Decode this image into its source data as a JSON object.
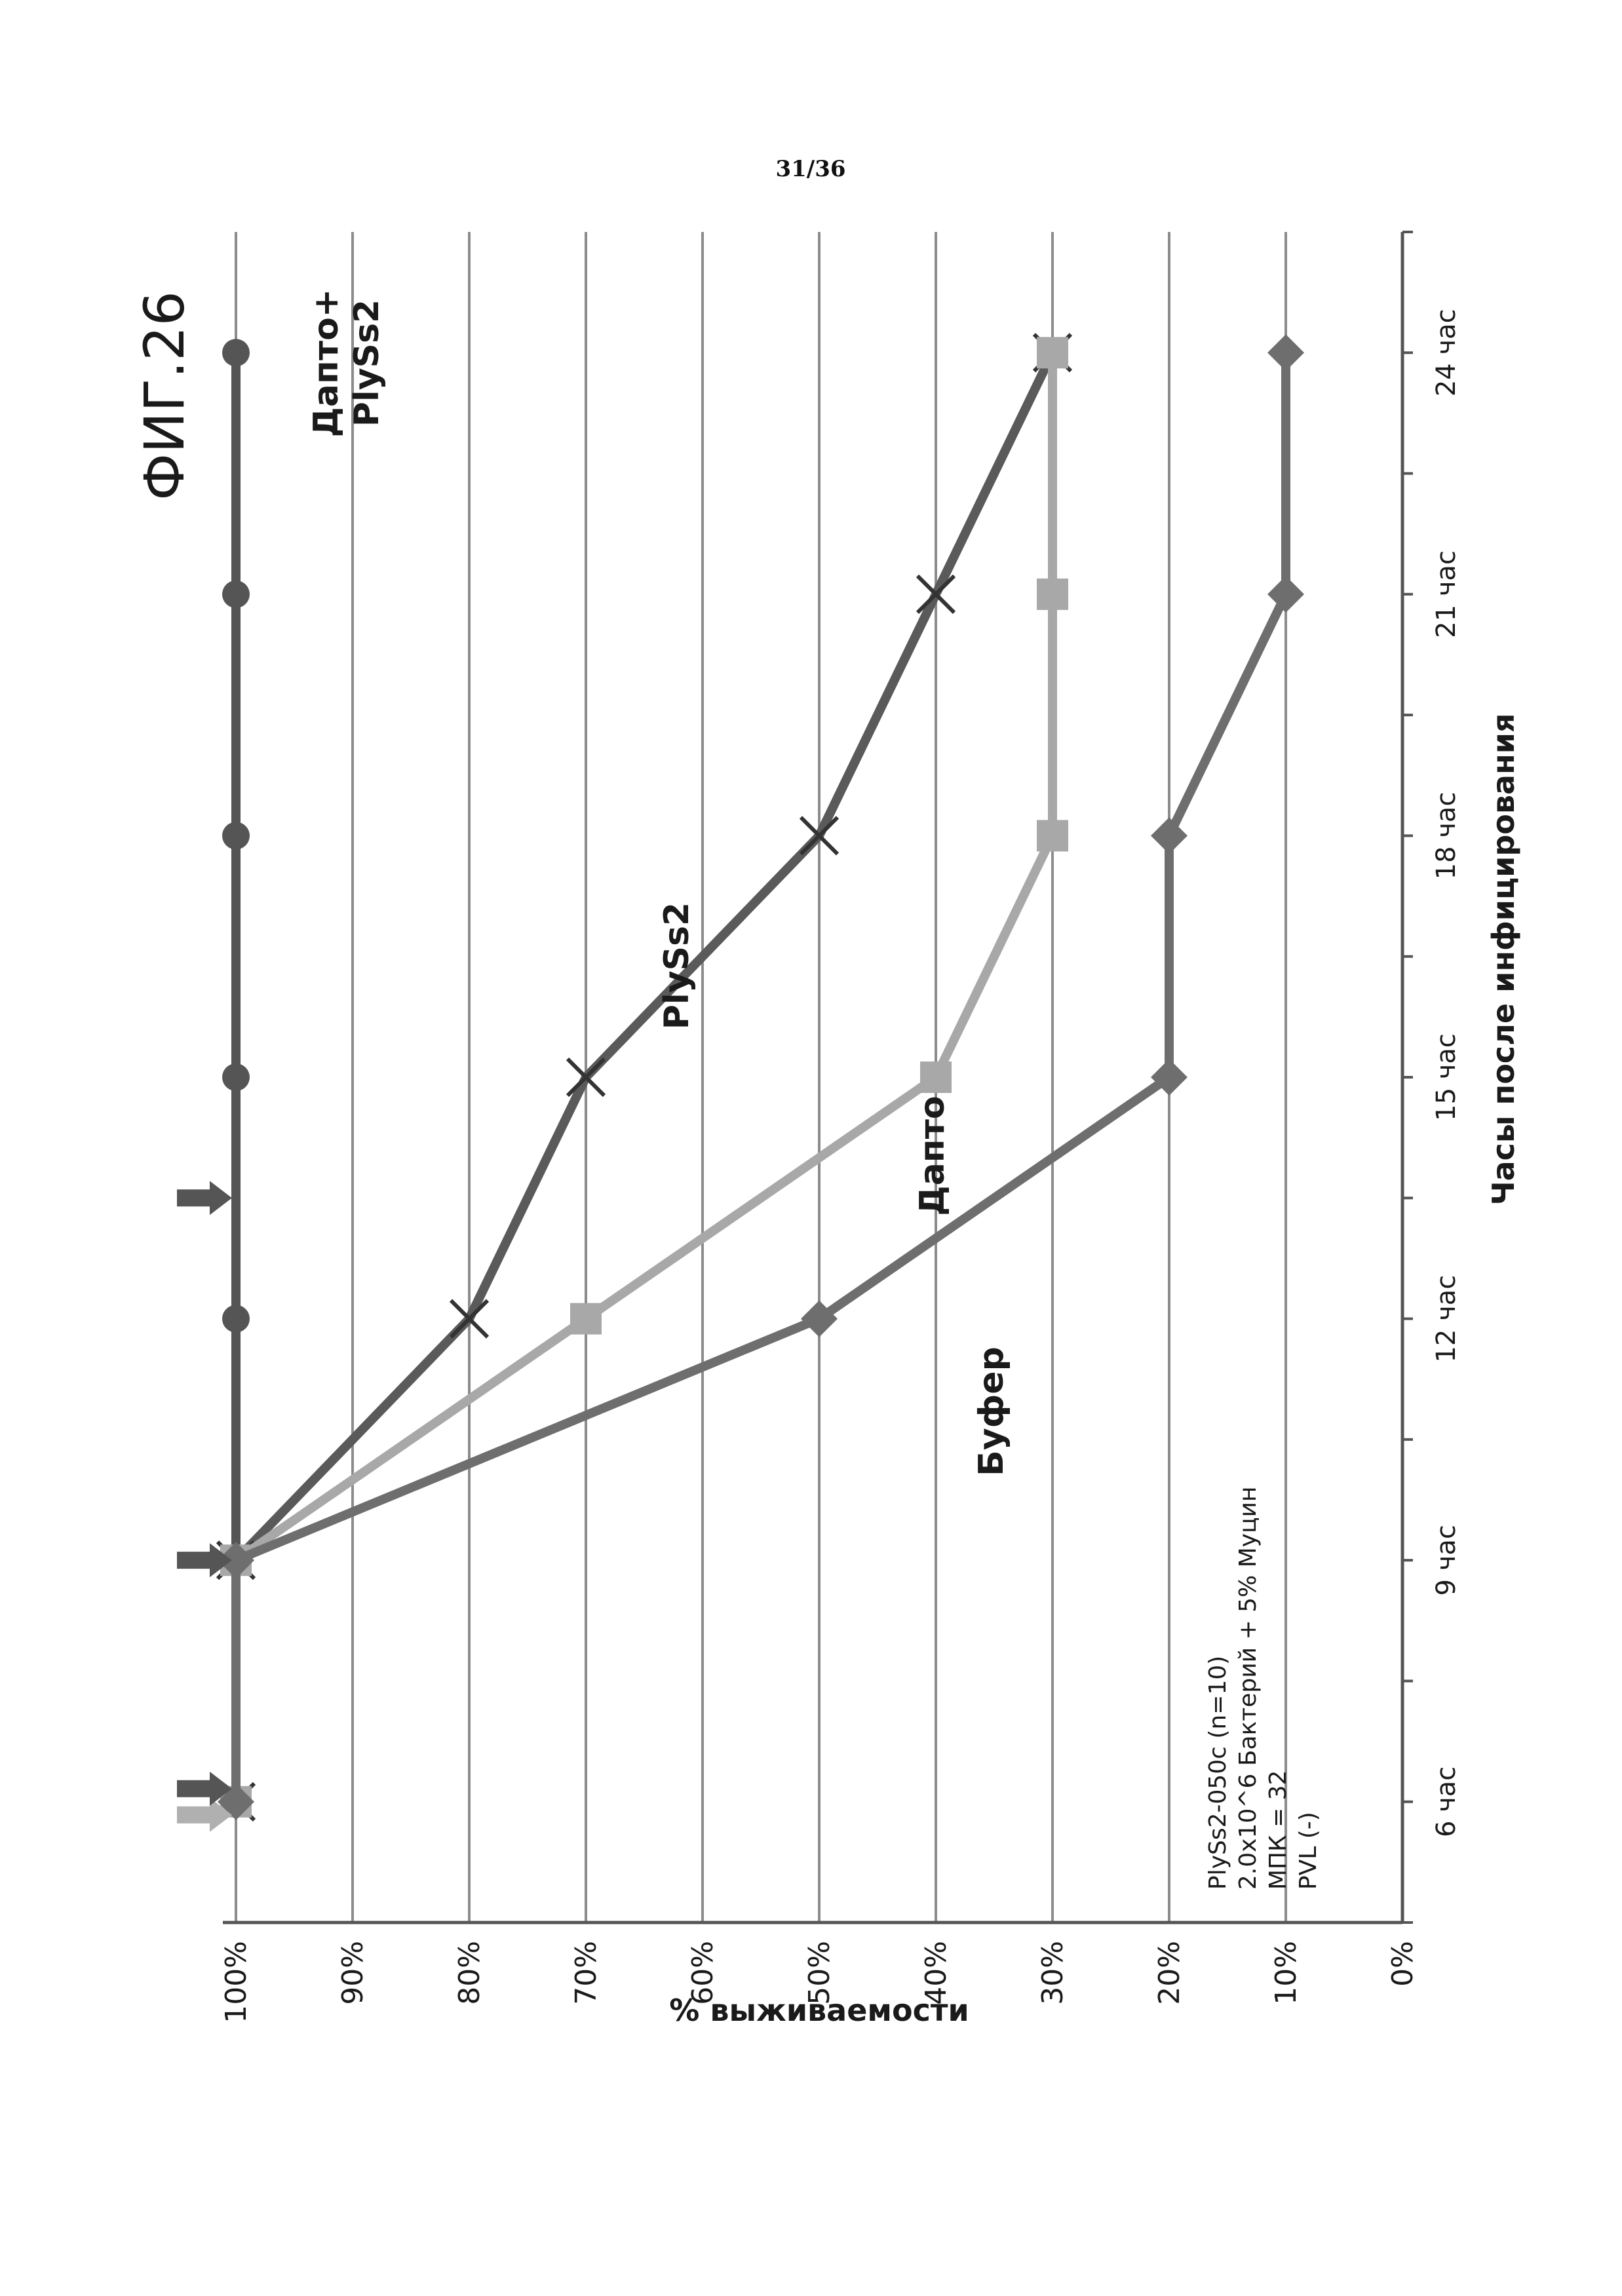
{
  "page_number": "31/36",
  "chart_data": {
    "type": "line",
    "title": "ФИГ.26",
    "xlabel": "Часы после инфицирования",
    "ylabel": "% выживаемости",
    "categories": [
      "6 час",
      "9 час",
      "12 час",
      "15 час",
      "18 час",
      "21 час",
      "24 час"
    ],
    "x": [
      6,
      9,
      12,
      15,
      18,
      21,
      24
    ],
    "xlim": [
      4.5,
      25.5
    ],
    "ylim": [
      0,
      100
    ],
    "y_ticks": [
      0,
      10,
      20,
      30,
      40,
      50,
      60,
      70,
      80,
      90,
      100
    ],
    "y_tick_labels": [
      "0%",
      "10%",
      "20%",
      "30%",
      "40%",
      "50%",
      "60%",
      "70%",
      "80%",
      "90%",
      "100%"
    ],
    "grid": true,
    "series": [
      {
        "name": "Дапто+ PlySs2",
        "label_lines": [
          "Дапто+",
          "PlySs2"
        ],
        "marker": "circle",
        "color": "#555555",
        "x": [
          6,
          9,
          12,
          15,
          18,
          21,
          24
        ],
        "values": [
          100,
          100,
          100,
          100,
          100,
          100,
          100
        ]
      },
      {
        "name": "PlySs2",
        "label_lines": [
          "PlySs2"
        ],
        "marker": "x",
        "color": "#5a5a5a",
        "x": [
          6,
          9,
          12,
          15,
          18,
          21,
          24
        ],
        "values": [
          100,
          100,
          80,
          70,
          50,
          40,
          30
        ]
      },
      {
        "name": "Дапто",
        "label_lines": [
          "Дапто"
        ],
        "marker": "square",
        "color": "#a8a8a8",
        "x": [
          6,
          9,
          12,
          15,
          18,
          21,
          24
        ],
        "values": [
          100,
          100,
          70,
          40,
          30,
          30,
          30
        ]
      },
      {
        "name": "Буфер",
        "label_lines": [
          "Буфер"
        ],
        "marker": "diamond",
        "color": "#6e6e6e",
        "x": [
          6,
          9,
          12,
          15,
          18,
          21,
          24
        ],
        "values": [
          100,
          100,
          50,
          20,
          20,
          10,
          10
        ]
      }
    ],
    "dosing_arrows": [
      {
        "x": 6,
        "color": "#b0b0b0"
      },
      {
        "x": 6,
        "color": "#555555"
      },
      {
        "x": 9,
        "color": "#555555"
      },
      {
        "x": 13.5,
        "color": "#555555"
      }
    ],
    "annotation": [
      "PlySs2-050c (n=10)",
      "2.0x10^6 Бактерий + 5% Муцин",
      "МПК = 32",
      "PVL (-)"
    ]
  }
}
